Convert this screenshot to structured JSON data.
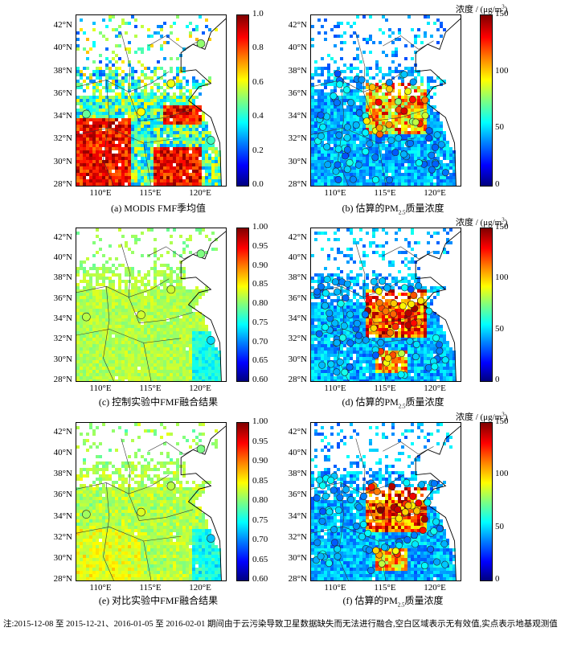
{
  "panels": [
    {
      "id": "a",
      "caption": "(a) MODIS FMF季均值",
      "variable": "FMF",
      "colorbar_ticks": [
        "1.0",
        "0.8",
        "0.6",
        "0.4",
        "0.2",
        "0.0"
      ],
      "unit": ""
    },
    {
      "id": "b",
      "caption_pre": "(b) 估算的PM",
      "caption_sub": "2.5",
      "caption_post": "质量浓度",
      "variable": "PM2.5",
      "colorbar_ticks": [
        "150",
        "100",
        "50",
        "0"
      ],
      "unit_pre": "浓度 / (μg/m",
      "unit_sup": "3",
      "unit_post": ")"
    },
    {
      "id": "c",
      "caption": "(c) 控制实验中FMF融合结果",
      "variable": "FMF",
      "colorbar_ticks": [
        "1.00",
        "0.95",
        "0.90",
        "0.85",
        "0.80",
        "0.75",
        "0.70",
        "0.65",
        "0.60"
      ],
      "unit": ""
    },
    {
      "id": "d",
      "caption_pre": "(d) 估算的PM",
      "caption_sub": "2.5",
      "caption_post": "质量浓度",
      "variable": "PM2.5",
      "colorbar_ticks": [
        "150",
        "100",
        "50",
        "0"
      ],
      "unit_pre": "浓度 / (μg/m",
      "unit_sup": "3",
      "unit_post": ")"
    },
    {
      "id": "e",
      "caption": "(e) 对比实验中FMF融合结果",
      "variable": "FMF",
      "colorbar_ticks": [
        "1.00",
        "0.95",
        "0.90",
        "0.85",
        "0.80",
        "0.75",
        "0.70",
        "0.65",
        "0.60"
      ],
      "unit": ""
    },
    {
      "id": "f",
      "caption_pre": "(f) 估算的PM",
      "caption_sub": "2.5",
      "caption_post": "质量浓度",
      "variable": "PM2.5",
      "colorbar_ticks": [
        "150",
        "100",
        "50",
        "0"
      ],
      "unit_pre": "浓度 / (μg/m",
      "unit_sup": "3",
      "unit_post": ")"
    }
  ],
  "axes": {
    "lat_ticks": [
      "42°N",
      "40°N",
      "38°N",
      "36°N",
      "34°N",
      "32°N",
      "30°N",
      "28°N"
    ],
    "lon_ticks": [
      "110°E",
      "115°E",
      "120°E"
    ]
  },
  "colors": {
    "colormap": [
      "#00007f",
      "#0000ff",
      "#007fff",
      "#00ffff",
      "#7fff7f",
      "#ffff00",
      "#ff7f00",
      "#ff0000",
      "#7f0000"
    ]
  },
  "note": "注:2015-12-08 至 2015-12-21、2016-01-05 至 2016-02-01 期间由于云污染导致卫星数据缺失而无法进行融合,空白区域表示无有效值,实点表示地基观测值",
  "chart_data": [
    {
      "type": "heatmap",
      "title": "(a) MODIS FMF季均值",
      "x_range_lon": [
        107.5,
        122.5
      ],
      "y_range_lat": [
        28,
        43
      ],
      "value_range": [
        0,
        1
      ]
    },
    {
      "type": "heatmap",
      "title": "(b) 估算的PM2.5质量浓度",
      "x_range_lon": [
        107.5,
        122.5
      ],
      "y_range_lat": [
        28,
        43
      ],
      "value_range": [
        0,
        150
      ],
      "unit": "μg/m3"
    },
    {
      "type": "heatmap",
      "title": "(c) 控制实验中FMF融合结果",
      "x_range_lon": [
        107.5,
        122.5
      ],
      "y_range_lat": [
        28,
        43
      ],
      "value_range": [
        0.6,
        1.0
      ]
    },
    {
      "type": "heatmap",
      "title": "(d) 估算的PM2.5质量浓度",
      "x_range_lon": [
        107.5,
        122.5
      ],
      "y_range_lat": [
        28,
        43
      ],
      "value_range": [
        0,
        150
      ],
      "unit": "μg/m3"
    },
    {
      "type": "heatmap",
      "title": "(e) 对比实验中FMF融合结果",
      "x_range_lon": [
        107.5,
        122.5
      ],
      "y_range_lat": [
        28,
        43
      ],
      "value_range": [
        0.6,
        1.0
      ]
    },
    {
      "type": "heatmap",
      "title": "(f) 估算的PM2.5质量浓度",
      "x_range_lon": [
        107.5,
        122.5
      ],
      "y_range_lat": [
        28,
        43
      ],
      "value_range": [
        0,
        150
      ],
      "unit": "μg/m3"
    }
  ]
}
